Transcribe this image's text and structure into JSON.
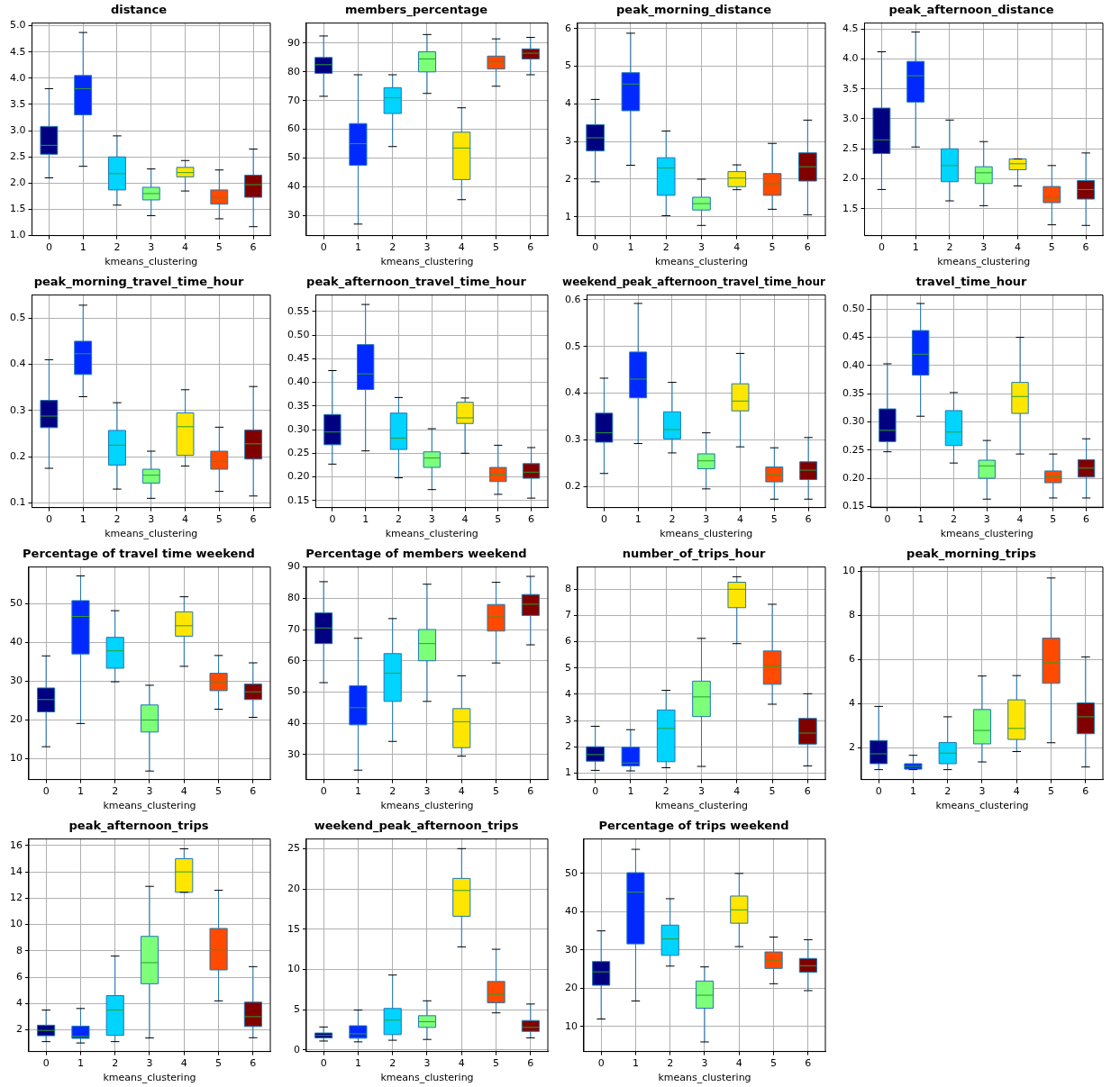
{
  "chart_data": [
    {
      "type": "box",
      "title": "distance",
      "xlabel": "kmeans_clustering",
      "categories": [
        "0",
        "1",
        "2",
        "3",
        "4",
        "5",
        "6"
      ],
      "colors": [
        "#000080",
        "#0028ff",
        "#00d4ff",
        "#7dff7a",
        "#ffe600",
        "#ff4a00",
        "#800000"
      ],
      "ylim": [
        1.0,
        5.05
      ],
      "yticks": [
        {
          "value": 1,
          "label": "1.0"
        },
        {
          "value": 1.5,
          "label": "1.5"
        },
        {
          "value": 2,
          "label": "2.0"
        },
        {
          "value": 2.5,
          "label": "2.5"
        },
        {
          "value": 3,
          "label": "3.0"
        },
        {
          "value": 3.5,
          "label": "3.5"
        },
        {
          "value": 4,
          "label": "4.0"
        },
        {
          "value": 4.5,
          "label": "4.5"
        },
        {
          "value": 5,
          "label": "5.0"
        }
      ],
      "grid": true,
      "boxes": [
        {
          "low": 2.1,
          "q1": 2.55,
          "median": 2.72,
          "q3": 3.08,
          "high": 3.8
        },
        {
          "low": 2.32,
          "q1": 3.3,
          "median": 3.8,
          "q3": 4.05,
          "high": 4.87
        },
        {
          "low": 1.58,
          "q1": 1.87,
          "median": 2.18,
          "q3": 2.5,
          "high": 2.9
        },
        {
          "low": 1.38,
          "q1": 1.68,
          "median": 1.8,
          "q3": 1.92,
          "high": 2.27
        },
        {
          "low": 1.85,
          "q1": 2.12,
          "median": 2.2,
          "q3": 2.3,
          "high": 2.43
        },
        {
          "low": 1.32,
          "q1": 1.6,
          "median": 1.72,
          "q3": 1.87,
          "high": 2.25
        },
        {
          "low": 1.17,
          "q1": 1.73,
          "median": 1.97,
          "q3": 2.15,
          "high": 2.65
        }
      ]
    },
    {
      "type": "box",
      "title": "members_percentage",
      "xlabel": "kmeans_clustering",
      "categories": [
        "0",
        "1",
        "2",
        "3",
        "4",
        "5",
        "6"
      ],
      "colors": [
        "#000080",
        "#0028ff",
        "#00d4ff",
        "#7dff7a",
        "#ffe600",
        "#ff4a00",
        "#800000"
      ],
      "ylim": [
        23,
        97
      ],
      "yticks": [
        30,
        40,
        50,
        60,
        70,
        80,
        90
      ],
      "grid": true,
      "boxes": [
        {
          "low": 71.5,
          "q1": 79.5,
          "median": 82.5,
          "q3": 85,
          "high": 92.5
        },
        {
          "low": 27,
          "q1": 47.5,
          "median": 55,
          "q3": 62,
          "high": 79
        },
        {
          "low": 54,
          "q1": 65.5,
          "median": 71,
          "q3": 74.5,
          "high": 79
        },
        {
          "low": 72.5,
          "q1": 80,
          "median": 84.5,
          "q3": 87,
          "high": 93
        },
        {
          "low": 35.5,
          "q1": 42.5,
          "median": 53.5,
          "q3": 59,
          "high": 67.5
        },
        {
          "low": 75,
          "q1": 81,
          "median": 83.5,
          "q3": 85.5,
          "high": 91.5
        },
        {
          "low": 79,
          "q1": 84.5,
          "median": 86.5,
          "q3": 88,
          "high": 92
        }
      ]
    },
    {
      "type": "box",
      "title": "peak_morning_distance",
      "xlabel": "kmeans_clustering",
      "categories": [
        "0",
        "1",
        "2",
        "3",
        "4",
        "5",
        "6"
      ],
      "colors": [
        "#000080",
        "#0028ff",
        "#00d4ff",
        "#7dff7a",
        "#ffe600",
        "#ff4a00",
        "#800000"
      ],
      "ylim": [
        0.5,
        6.15
      ],
      "yticks": [
        1,
        2,
        3,
        4,
        5,
        6
      ],
      "grid": true,
      "boxes": [
        {
          "low": 1.93,
          "q1": 2.75,
          "median": 3.1,
          "q3": 3.45,
          "high": 4.12
        },
        {
          "low": 2.37,
          "q1": 3.82,
          "median": 4.53,
          "q3": 4.83,
          "high": 5.88
        },
        {
          "low": 1.03,
          "q1": 1.57,
          "median": 2.3,
          "q3": 2.57,
          "high": 3.28
        },
        {
          "low": 0.77,
          "q1": 1.18,
          "median": 1.35,
          "q3": 1.52,
          "high": 2.0
        },
        {
          "low": 1.72,
          "q1": 1.8,
          "median": 2.03,
          "q3": 2.2,
          "high": 2.38
        },
        {
          "low": 1.2,
          "q1": 1.57,
          "median": 1.88,
          "q3": 2.15,
          "high": 2.95
        },
        {
          "low": 1.05,
          "q1": 1.95,
          "median": 2.33,
          "q3": 2.7,
          "high": 3.57
        }
      ]
    },
    {
      "type": "box",
      "title": "peak_afternoon_distance",
      "xlabel": "kmeans_clustering",
      "categories": [
        "0",
        "1",
        "2",
        "3",
        "4",
        "5",
        "6"
      ],
      "colors": [
        "#000080",
        "#0028ff",
        "#00d4ff",
        "#7dff7a",
        "#ffe600",
        "#ff4a00",
        "#800000"
      ],
      "ylim": [
        1.05,
        4.6
      ],
      "yticks": [
        1.5,
        {
          "value": 2,
          "label": "2.0"
        },
        2.5,
        {
          "value": 3,
          "label": "3.0"
        },
        3.5,
        {
          "value": 4,
          "label": "4.0"
        },
        4.5
      ],
      "grid": true,
      "boxes": [
        {
          "low": 1.82,
          "q1": 2.42,
          "median": 2.65,
          "q3": 3.18,
          "high": 4.12
        },
        {
          "low": 2.53,
          "q1": 3.28,
          "median": 3.72,
          "q3": 3.96,
          "high": 4.45
        },
        {
          "low": 1.63,
          "q1": 1.95,
          "median": 2.22,
          "q3": 2.5,
          "high": 2.98
        },
        {
          "low": 1.55,
          "q1": 1.92,
          "median": 2.1,
          "q3": 2.2,
          "high": 2.62
        },
        {
          "low": 1.88,
          "q1": 2.15,
          "median": 2.25,
          "q3": 2.33,
          "high": 2.33
        },
        {
          "low": 1.23,
          "q1": 1.6,
          "median": 1.68,
          "q3": 1.87,
          "high": 2.22
        },
        {
          "low": 1.22,
          "q1": 1.66,
          "median": 1.82,
          "q3": 1.97,
          "high": 2.43
        }
      ]
    },
    {
      "type": "box",
      "title": "peak_morning_travel_time_hour",
      "xlabel": "kmeans_clustering",
      "categories": [
        "0",
        "1",
        "2",
        "3",
        "4",
        "5",
        "6"
      ],
      "colors": [
        "#000080",
        "#0028ff",
        "#00d4ff",
        "#7dff7a",
        "#ffe600",
        "#ff4a00",
        "#800000"
      ],
      "ylim": [
        0.09,
        0.55
      ],
      "yticks": [
        0.1,
        0.2,
        0.3,
        0.4,
        0.5
      ],
      "grid": true,
      "boxes": [
        {
          "low": 0.175,
          "q1": 0.263,
          "median": 0.288,
          "q3": 0.322,
          "high": 0.41
        },
        {
          "low": 0.33,
          "q1": 0.378,
          "median": 0.423,
          "q3": 0.45,
          "high": 0.528
        },
        {
          "low": 0.13,
          "q1": 0.182,
          "median": 0.225,
          "q3": 0.257,
          "high": 0.317
        },
        {
          "low": 0.11,
          "q1": 0.143,
          "median": 0.16,
          "q3": 0.173,
          "high": 0.212
        },
        {
          "low": 0.18,
          "q1": 0.203,
          "median": 0.265,
          "q3": 0.295,
          "high": 0.345
        },
        {
          "low": 0.125,
          "q1": 0.173,
          "median": 0.19,
          "q3": 0.212,
          "high": 0.264
        },
        {
          "low": 0.115,
          "q1": 0.195,
          "median": 0.228,
          "q3": 0.258,
          "high": 0.352
        }
      ]
    },
    {
      "type": "box",
      "title": "peak_afternoon_travel_time_hour",
      "xlabel": "kmeans_clustering",
      "categories": [
        "0",
        "1",
        "2",
        "3",
        "4",
        "5",
        "6"
      ],
      "colors": [
        "#000080",
        "#0028ff",
        "#00d4ff",
        "#7dff7a",
        "#ffe600",
        "#ff4a00",
        "#800000"
      ],
      "ylim": [
        0.135,
        0.585
      ],
      "yticks": [
        0.15,
        {
          "value": 0.2,
          "label": "0.20"
        },
        0.25,
        {
          "value": 0.3,
          "label": "0.30"
        },
        0.35,
        {
          "value": 0.4,
          "label": "0.40"
        },
        0.45,
        {
          "value": 0.5,
          "label": "0.50"
        },
        0.55
      ],
      "grid": true,
      "boxes": [
        {
          "low": 0.227,
          "q1": 0.268,
          "median": 0.295,
          "q3": 0.332,
          "high": 0.425
        },
        {
          "low": 0.255,
          "q1": 0.385,
          "median": 0.418,
          "q3": 0.48,
          "high": 0.565
        },
        {
          "low": 0.198,
          "q1": 0.258,
          "median": 0.282,
          "q3": 0.335,
          "high": 0.368
        },
        {
          "low": 0.173,
          "q1": 0.22,
          "median": 0.24,
          "q3": 0.253,
          "high": 0.302
        },
        {
          "low": 0.25,
          "q1": 0.313,
          "median": 0.325,
          "q3": 0.358,
          "high": 0.367
        },
        {
          "low": 0.163,
          "q1": 0.19,
          "median": 0.205,
          "q3": 0.22,
          "high": 0.267
        },
        {
          "low": 0.155,
          "q1": 0.197,
          "median": 0.21,
          "q3": 0.228,
          "high": 0.262
        }
      ]
    },
    {
      "type": "box",
      "title": "weekend_peak_afternoon_travel_time_hour",
      "xlabel": "kmeans_clustering",
      "categories": [
        "0",
        "1",
        "2",
        "3",
        "4",
        "5",
        "6"
      ],
      "colors": [
        "#000080",
        "#0028ff",
        "#00d4ff",
        "#7dff7a",
        "#ffe600",
        "#ff4a00",
        "#800000"
      ],
      "ylim": [
        0.155,
        0.61
      ],
      "yticks": [
        0.2,
        0.3,
        0.4,
        0.5,
        0.6
      ],
      "grid": true,
      "boxes": [
        {
          "low": 0.228,
          "q1": 0.295,
          "median": 0.315,
          "q3": 0.357,
          "high": 0.432
        },
        {
          "low": 0.292,
          "q1": 0.39,
          "median": 0.43,
          "q3": 0.488,
          "high": 0.592
        },
        {
          "low": 0.272,
          "q1": 0.302,
          "median": 0.322,
          "q3": 0.36,
          "high": 0.423
        },
        {
          "low": 0.195,
          "q1": 0.238,
          "median": 0.255,
          "q3": 0.27,
          "high": 0.315
        },
        {
          "low": 0.285,
          "q1": 0.362,
          "median": 0.383,
          "q3": 0.42,
          "high": 0.485
        },
        {
          "low": 0.173,
          "q1": 0.21,
          "median": 0.225,
          "q3": 0.242,
          "high": 0.283
        },
        {
          "low": 0.173,
          "q1": 0.215,
          "median": 0.235,
          "q3": 0.253,
          "high": 0.305
        }
      ]
    },
    {
      "type": "box",
      "title": "travel_time_hour",
      "xlabel": "kmeans_clustering",
      "categories": [
        "0",
        "1",
        "2",
        "3",
        "4",
        "5",
        "6"
      ],
      "colors": [
        "#000080",
        "#0028ff",
        "#00d4ff",
        "#7dff7a",
        "#ffe600",
        "#ff4a00",
        "#800000"
      ],
      "ylim": [
        0.148,
        0.525
      ],
      "yticks": [
        0.15,
        {
          "value": 0.2,
          "label": "0.20"
        },
        0.25,
        {
          "value": 0.3,
          "label": "0.30"
        },
        0.35,
        {
          "value": 0.4,
          "label": "0.40"
        },
        0.45,
        {
          "value": 0.5,
          "label": "0.50"
        }
      ],
      "grid": true,
      "boxes": [
        {
          "low": 0.247,
          "q1": 0.265,
          "median": 0.285,
          "q3": 0.323,
          "high": 0.403
        },
        {
          "low": 0.31,
          "q1": 0.383,
          "median": 0.42,
          "q3": 0.462,
          "high": 0.51
        },
        {
          "low": 0.227,
          "q1": 0.258,
          "median": 0.282,
          "q3": 0.32,
          "high": 0.352
        },
        {
          "low": 0.163,
          "q1": 0.2,
          "median": 0.222,
          "q3": 0.232,
          "high": 0.267
        },
        {
          "low": 0.243,
          "q1": 0.315,
          "median": 0.345,
          "q3": 0.37,
          "high": 0.45
        },
        {
          "low": 0.165,
          "q1": 0.192,
          "median": 0.203,
          "q3": 0.213,
          "high": 0.243
        },
        {
          "low": 0.165,
          "q1": 0.202,
          "median": 0.218,
          "q3": 0.233,
          "high": 0.27
        }
      ]
    },
    {
      "type": "box",
      "title": "Percentage of travel time weekend",
      "xlabel": "kmeans_clustering",
      "categories": [
        "0",
        "1",
        "2",
        "3",
        "4",
        "5",
        "6"
      ],
      "colors": [
        "#000080",
        "#0028ff",
        "#00d4ff",
        "#7dff7a",
        "#ffe600",
        "#ff4a00",
        "#800000"
      ],
      "ylim": [
        4.5,
        59.5
      ],
      "yticks": [
        10,
        20,
        30,
        40,
        50
      ],
      "grid": true,
      "boxes": [
        {
          "low": 13,
          "q1": 22,
          "median": 25.2,
          "q3": 28.2,
          "high": 36.5
        },
        {
          "low": 19,
          "q1": 37,
          "median": 46.7,
          "q3": 50.8,
          "high": 57.2
        },
        {
          "low": 29.8,
          "q1": 33.3,
          "median": 37.8,
          "q3": 41.3,
          "high": 48.2
        },
        {
          "low": 6.7,
          "q1": 16.8,
          "median": 19.9,
          "q3": 23.8,
          "high": 28.9
        },
        {
          "low": 33.8,
          "q1": 41.6,
          "median": 44.3,
          "q3": 47.9,
          "high": 51.8
        },
        {
          "low": 22.7,
          "q1": 27.5,
          "median": 29.8,
          "q3": 32,
          "high": 36.6
        },
        {
          "low": 20.6,
          "q1": 25.2,
          "median": 27.2,
          "q3": 29.2,
          "high": 34.7
        }
      ]
    },
    {
      "type": "box",
      "title": "Percentage of members weekend",
      "xlabel": "kmeans_clustering",
      "categories": [
        "0",
        "1",
        "2",
        "3",
        "4",
        "5",
        "6"
      ],
      "colors": [
        "#000080",
        "#0028ff",
        "#00d4ff",
        "#7dff7a",
        "#ffe600",
        "#ff4a00",
        "#800000"
      ],
      "ylim": [
        22,
        90
      ],
      "yticks": [
        30,
        40,
        50,
        60,
        70,
        80,
        90
      ],
      "grid": true,
      "boxes": [
        {
          "low": 53,
          "q1": 65.5,
          "median": 70.5,
          "q3": 75.3,
          "high": 85.3
        },
        {
          "low": 25,
          "q1": 39.5,
          "median": 45,
          "q3": 52,
          "high": 67.2
        },
        {
          "low": 34.2,
          "q1": 47,
          "median": 56,
          "q3": 62.3,
          "high": 73.5
        },
        {
          "low": 47,
          "q1": 60,
          "median": 65.5,
          "q3": 70,
          "high": 84.5
        },
        {
          "low": 29.5,
          "q1": 32.2,
          "median": 40.5,
          "q3": 44.7,
          "high": 55.2
        },
        {
          "low": 59.3,
          "q1": 69.5,
          "median": 74,
          "q3": 78,
          "high": 85.1
        },
        {
          "low": 65.1,
          "q1": 74.5,
          "median": 78.1,
          "q3": 81.2,
          "high": 87
        }
      ]
    },
    {
      "type": "box",
      "title": "number_of_trips_hour",
      "xlabel": "kmeans_clustering",
      "categories": [
        "0",
        "1",
        "2",
        "3",
        "4",
        "5",
        "6"
      ],
      "colors": [
        "#000080",
        "#0028ff",
        "#00d4ff",
        "#7dff7a",
        "#ffe600",
        "#ff4a00",
        "#800000"
      ],
      "ylim": [
        0.75,
        8.85
      ],
      "yticks": [
        1,
        2,
        3,
        4,
        5,
        6,
        7,
        8
      ],
      "grid": true,
      "boxes": [
        {
          "low": 1.1,
          "q1": 1.45,
          "median": 1.7,
          "q3": 2.0,
          "high": 2.78
        },
        {
          "low": 1.08,
          "q1": 1.27,
          "median": 1.38,
          "q3": 1.98,
          "high": 2.65
        },
        {
          "low": 1.2,
          "q1": 1.43,
          "median": 2.7,
          "q3": 3.4,
          "high": 4.15
        },
        {
          "low": 1.25,
          "q1": 3.15,
          "median": 3.9,
          "q3": 4.5,
          "high": 6.13
        },
        {
          "low": 5.93,
          "q1": 7.3,
          "median": 8.0,
          "q3": 8.27,
          "high": 8.48
        },
        {
          "low": 3.62,
          "q1": 4.38,
          "median": 5.07,
          "q3": 5.65,
          "high": 7.43
        },
        {
          "low": 1.27,
          "q1": 2.1,
          "median": 2.52,
          "q3": 3.08,
          "high": 4.02
        }
      ]
    },
    {
      "type": "box",
      "title": "peak_morning_trips",
      "xlabel": "kmeans_clustering",
      "categories": [
        "0",
        "1",
        "2",
        "3",
        "4",
        "5",
        "6"
      ],
      "colors": [
        "#000080",
        "#0028ff",
        "#00d4ff",
        "#7dff7a",
        "#ffe600",
        "#ff4a00",
        "#800000"
      ],
      "ylim": [
        0.55,
        10.2
      ],
      "yticks": [
        2,
        4,
        6,
        8,
        10
      ],
      "grid": true,
      "boxes": [
        {
          "low": 1.0,
          "q1": 1.27,
          "median": 1.72,
          "q3": 2.32,
          "high": 3.87
        },
        {
          "low": 1.0,
          "q1": 1.02,
          "median": 1.15,
          "q3": 1.27,
          "high": 1.65
        },
        {
          "low": 1.0,
          "q1": 1.27,
          "median": 1.75,
          "q3": 2.23,
          "high": 3.4
        },
        {
          "low": 1.35,
          "q1": 2.17,
          "median": 2.78,
          "q3": 3.73,
          "high": 5.25
        },
        {
          "low": 1.82,
          "q1": 2.37,
          "median": 2.87,
          "q3": 4.17,
          "high": 5.27
        },
        {
          "low": 2.22,
          "q1": 4.92,
          "median": 5.85,
          "q3": 6.97,
          "high": 9.7
        },
        {
          "low": 1.12,
          "q1": 2.63,
          "median": 3.4,
          "q3": 4.03,
          "high": 6.12
        }
      ]
    },
    {
      "type": "box",
      "title": "peak_afternoon_trips",
      "xlabel": "kmeans_clustering",
      "categories": [
        "0",
        "1",
        "2",
        "3",
        "4",
        "5",
        "6"
      ],
      "colors": [
        "#000080",
        "#0028ff",
        "#00d4ff",
        "#7dff7a",
        "#ffe600",
        "#ff4a00",
        "#800000"
      ],
      "ylim": [
        0.35,
        16.5
      ],
      "yticks": [
        2,
        4,
        6,
        8,
        10,
        12,
        14,
        16
      ],
      "grid": true,
      "boxes": [
        {
          "low": 1.1,
          "q1": 1.55,
          "median": 1.95,
          "q3": 2.35,
          "high": 3.5
        },
        {
          "low": 1.0,
          "q1": 1.35,
          "median": 1.5,
          "q3": 2.28,
          "high": 3.62
        },
        {
          "low": 1.1,
          "q1": 1.58,
          "median": 3.5,
          "q3": 4.6,
          "high": 7.6
        },
        {
          "low": 1.38,
          "q1": 5.5,
          "median": 7.1,
          "q3": 9.1,
          "high": 12.9
        },
        {
          "low": 12.45,
          "q1": 12.45,
          "median": 14.0,
          "q3": 15.0,
          "high": 15.75
        },
        {
          "low": 4.2,
          "q1": 6.55,
          "median": 8.1,
          "q3": 9.7,
          "high": 12.6
        },
        {
          "low": 1.4,
          "q1": 2.25,
          "median": 3.0,
          "q3": 4.1,
          "high": 6.8
        }
      ]
    },
    {
      "type": "box",
      "title": "weekend_peak_afternoon_trips",
      "xlabel": "kmeans_clustering",
      "categories": [
        "0",
        "1",
        "2",
        "3",
        "4",
        "5",
        "6"
      ],
      "colors": [
        "#000080",
        "#0028ff",
        "#00d4ff",
        "#7dff7a",
        "#ffe600",
        "#ff4a00",
        "#800000"
      ],
      "ylim": [
        -0.2,
        26.2
      ],
      "yticks": [
        0,
        5,
        10,
        15,
        20,
        25
      ],
      "grid": true,
      "boxes": [
        {
          "low": 1.1,
          "q1": 1.5,
          "median": 1.8,
          "q3": 2.1,
          "high": 2.85
        },
        {
          "low": 1.0,
          "q1": 1.45,
          "median": 2.0,
          "q3": 3.0,
          "high": 4.95
        },
        {
          "low": 1.2,
          "q1": 1.9,
          "median": 3.7,
          "q3": 5.15,
          "high": 9.3
        },
        {
          "low": 1.3,
          "q1": 2.8,
          "median": 3.5,
          "q3": 4.25,
          "high": 6.1
        },
        {
          "low": 12.8,
          "q1": 16.6,
          "median": 19.8,
          "q3": 21.3,
          "high": 25
        },
        {
          "low": 4.6,
          "q1": 5.85,
          "median": 6.9,
          "q3": 8.5,
          "high": 12.5
        },
        {
          "low": 1.5,
          "q1": 2.3,
          "median": 2.8,
          "q3": 3.65,
          "high": 5.7
        }
      ]
    },
    {
      "type": "box",
      "title": "Percentage of trips weekend",
      "xlabel": "kmeans_clustering",
      "categories": [
        "0",
        "1",
        "2",
        "3",
        "4",
        "5",
        "6"
      ],
      "colors": [
        "#000080",
        "#0028ff",
        "#00d4ff",
        "#7dff7a",
        "#ffe600",
        "#ff4a00",
        "#800000"
      ],
      "ylim": [
        3.5,
        59
      ],
      "yticks": [
        10,
        20,
        30,
        40,
        50
      ],
      "grid": true,
      "boxes": [
        {
          "low": 12,
          "q1": 20.8,
          "median": 24.3,
          "q3": 27,
          "high": 35
        },
        {
          "low": 16.7,
          "q1": 31.6,
          "median": 45.1,
          "q3": 50.2,
          "high": 56.3
        },
        {
          "low": 25.8,
          "q1": 28.6,
          "median": 32.9,
          "q3": 36.5,
          "high": 43.4
        },
        {
          "low": 6,
          "q1": 14.8,
          "median": 18.2,
          "q3": 21.9,
          "high": 25.6
        },
        {
          "low": 30.9,
          "q1": 37,
          "median": 40.5,
          "q3": 44.1,
          "high": 50
        },
        {
          "low": 21.2,
          "q1": 25.2,
          "median": 27.4,
          "q3": 29.5,
          "high": 33.4
        },
        {
          "low": 19.4,
          "q1": 24.2,
          "median": 25.9,
          "q3": 27.8,
          "high": 32.7
        }
      ]
    }
  ]
}
